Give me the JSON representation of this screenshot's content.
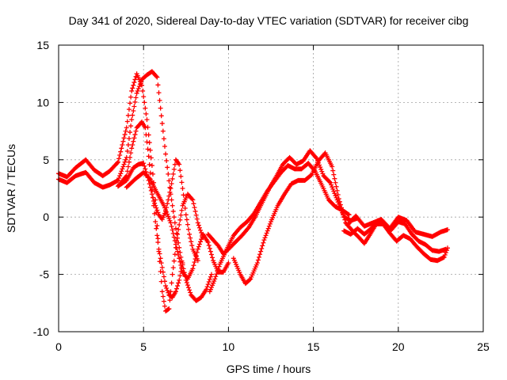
{
  "chart_data": {
    "type": "scatter",
    "title": "Day 341 of 2020, Sidereal Day-to-day VTEC variation (SDTVAR) for receiver cibg",
    "xlabel": "GPS time / hours",
    "ylabel": "SDTVAR / TECUs",
    "xlim": [
      0,
      25
    ],
    "ylim": [
      -10,
      15
    ],
    "xticks": [
      0,
      5,
      10,
      15,
      20,
      25
    ],
    "yticks": [
      -10,
      -5,
      0,
      5,
      10,
      15
    ],
    "grid": true,
    "marker": "+",
    "series_color": "#ff0000",
    "series": [
      {
        "name": "track-1",
        "points": [
          [
            0,
            3.8
          ],
          [
            0.5,
            3.5
          ],
          [
            1,
            4.3
          ],
          [
            1.6,
            5.0
          ],
          [
            2.1,
            4.1
          ],
          [
            2.6,
            3.6
          ],
          [
            3,
            4.0
          ],
          [
            3.5,
            4.8
          ],
          [
            4,
            7.8
          ],
          [
            4.3,
            11.0
          ],
          [
            4.6,
            12.5
          ],
          [
            4.9,
            11.5
          ],
          [
            5.2,
            8.5
          ],
          [
            5.5,
            4.5
          ],
          [
            5.7,
            1.5
          ],
          [
            5.9,
            -3.0
          ],
          [
            6.1,
            -6.5
          ],
          [
            6.3,
            -8.2
          ],
          [
            6.5,
            -8.0
          ],
          [
            6.7,
            -5.0
          ],
          [
            7.0,
            -1.5
          ],
          [
            7.3,
            1.0
          ],
          [
            7.6,
            2.0
          ],
          [
            7.9,
            1.5
          ],
          [
            8.2,
            -0.5
          ],
          [
            8.5,
            -1.8
          ]
        ]
      },
      {
        "name": "track-2",
        "points": [
          [
            0,
            3.3
          ],
          [
            0.5,
            3.0
          ],
          [
            1,
            3.6
          ],
          [
            1.6,
            3.9
          ],
          [
            2.1,
            3.0
          ],
          [
            2.6,
            2.6
          ],
          [
            3,
            2.8
          ],
          [
            3.5,
            3.2
          ],
          [
            4,
            5.2
          ],
          [
            4.3,
            8.5
          ],
          [
            4.6,
            10.8
          ],
          [
            4.9,
            12.0
          ],
          [
            5.2,
            12.4
          ],
          [
            5.5,
            12.7
          ],
          [
            5.8,
            12.2
          ],
          [
            6.0,
            9.5
          ],
          [
            6.3,
            5.5
          ],
          [
            6.6,
            2.0
          ],
          [
            6.9,
            -1.0
          ],
          [
            7.2,
            -3.5
          ],
          [
            7.5,
            -5.5
          ],
          [
            7.8,
            -6.8
          ],
          [
            8.1,
            -7.3
          ],
          [
            8.4,
            -7.0
          ],
          [
            8.7,
            -6.3
          ],
          [
            9.0,
            -5.0
          ]
        ]
      },
      {
        "name": "track-3",
        "points": [
          [
            3.5,
            2.7
          ],
          [
            4,
            3.6
          ],
          [
            4.3,
            6.0
          ],
          [
            4.6,
            7.8
          ],
          [
            4.9,
            8.3
          ],
          [
            5.1,
            7.8
          ],
          [
            5.3,
            5.3
          ],
          [
            5.5,
            2.4
          ],
          [
            5.7,
            -0.4
          ],
          [
            5.9,
            -2.8
          ],
          [
            6.1,
            -4.4
          ],
          [
            6.3,
            -6.0
          ],
          [
            6.5,
            -6.8
          ],
          [
            6.7,
            -7.0
          ],
          [
            6.9,
            -6.5
          ],
          [
            7.1,
            -5.5
          ],
          [
            7.3,
            -4.0
          ]
        ]
      },
      {
        "name": "track-4",
        "points": [
          [
            3.5,
            2.7
          ],
          [
            4,
            3.2
          ],
          [
            4.4,
            4.3
          ],
          [
            4.7,
            4.6
          ],
          [
            5.0,
            4.7
          ],
          [
            5.3,
            3.2
          ],
          [
            5.6,
            1.4
          ],
          [
            5.9,
            0.2
          ],
          [
            6.1,
            -0.2
          ],
          [
            6.3,
            0.5
          ],
          [
            6.6,
            2.5
          ],
          [
            6.9,
            5.0
          ],
          [
            7.1,
            4.6
          ],
          [
            7.3,
            2.5
          ],
          [
            7.5,
            0.2
          ],
          [
            7.7,
            -1.5
          ],
          [
            7.9,
            -2.8
          ],
          [
            8.2,
            -3.8
          ]
        ]
      },
      {
        "name": "track-5",
        "points": [
          [
            4,
            2.6
          ],
          [
            4.5,
            3.3
          ],
          [
            5,
            3.9
          ],
          [
            5.4,
            3.3
          ],
          [
            5.8,
            2.1
          ],
          [
            6.2,
            1.0
          ],
          [
            6.6,
            -0.5
          ],
          [
            7.0,
            -3.0
          ],
          [
            7.3,
            -4.8
          ],
          [
            7.6,
            -5.4
          ],
          [
            7.9,
            -4.5
          ],
          [
            8.2,
            -2.8
          ],
          [
            8.5,
            -1.5
          ],
          [
            8.8,
            -2.2
          ],
          [
            9.1,
            -3.8
          ],
          [
            9.4,
            -4.8
          ],
          [
            9.7,
            -4.8
          ],
          [
            10.0,
            -4.0
          ]
        ]
      },
      {
        "name": "track-6",
        "points": [
          [
            8.8,
            -1.5
          ],
          [
            9.1,
            -2.0
          ],
          [
            9.4,
            -2.5
          ],
          [
            9.7,
            -3.2
          ],
          [
            10.0,
            -2.8
          ],
          [
            10.4,
            -2.2
          ],
          [
            10.8,
            -1.6
          ],
          [
            11.2,
            -0.9
          ],
          [
            11.6,
            0.1
          ],
          [
            12.0,
            1.3
          ],
          [
            12.4,
            2.5
          ],
          [
            12.8,
            3.5
          ],
          [
            13.2,
            4.6
          ],
          [
            13.6,
            5.2
          ],
          [
            14.0,
            4.6
          ],
          [
            14.4,
            4.9
          ],
          [
            14.8,
            5.8
          ],
          [
            15.2,
            5.1
          ],
          [
            15.6,
            3.6
          ],
          [
            16.0,
            3.0
          ],
          [
            16.4,
            1.5
          ],
          [
            16.8,
            0.0
          ],
          [
            17.2,
            -0.3
          ],
          [
            17.6,
            -0.1
          ]
        ]
      },
      {
        "name": "track-7",
        "points": [
          [
            8.9,
            -6.5
          ],
          [
            9.2,
            -5.4
          ],
          [
            9.5,
            -4.1
          ],
          [
            9.9,
            -2.8
          ],
          [
            10.3,
            -1.6
          ],
          [
            10.7,
            -0.9
          ],
          [
            11.1,
            -0.4
          ],
          [
            11.5,
            0.3
          ],
          [
            11.9,
            1.3
          ],
          [
            12.3,
            2.3
          ],
          [
            12.7,
            3.1
          ],
          [
            13.1,
            3.9
          ],
          [
            13.5,
            4.5
          ],
          [
            13.9,
            4.2
          ],
          [
            14.3,
            4.2
          ],
          [
            14.7,
            4.7
          ],
          [
            15.1,
            4.0
          ],
          [
            15.5,
            2.8
          ],
          [
            15.9,
            1.5
          ],
          [
            16.3,
            0.9
          ],
          [
            16.7,
            0.6
          ],
          [
            17.1,
            0.2
          ]
        ]
      },
      {
        "name": "track-8",
        "points": [
          [
            10.3,
            -3.6
          ],
          [
            10.7,
            -5.0
          ],
          [
            11.0,
            -5.8
          ],
          [
            11.3,
            -5.4
          ],
          [
            11.7,
            -4.0
          ],
          [
            12.1,
            -2.0
          ],
          [
            12.5,
            -0.4
          ],
          [
            12.9,
            1.0
          ],
          [
            13.3,
            2.0
          ],
          [
            13.7,
            2.9
          ],
          [
            14.1,
            3.2
          ],
          [
            14.5,
            3.2
          ],
          [
            14.9,
            3.7
          ],
          [
            15.3,
            4.9
          ],
          [
            15.7,
            5.6
          ],
          [
            16.1,
            4.4
          ],
          [
            16.5,
            1.6
          ],
          [
            16.9,
            -0.5
          ],
          [
            17.3,
            -1.2
          ],
          [
            17.7,
            -1.8
          ],
          [
            18.0,
            -2.3
          ],
          [
            18.3,
            -1.6
          ],
          [
            18.7,
            -0.6
          ],
          [
            19.1,
            -0.6
          ],
          [
            19.5,
            -1.4
          ],
          [
            19.9,
            -2.1
          ],
          [
            20.3,
            -1.6
          ],
          [
            20.7,
            -1.9
          ],
          [
            21.1,
            -2.6
          ],
          [
            21.5,
            -3.2
          ],
          [
            21.9,
            -3.7
          ],
          [
            22.3,
            -3.8
          ],
          [
            22.7,
            -3.5
          ],
          [
            22.9,
            -2.7
          ]
        ]
      },
      {
        "name": "track-9",
        "points": [
          [
            16.8,
            -1.2
          ],
          [
            17.2,
            -1.5
          ],
          [
            17.6,
            -1.0
          ],
          [
            18.0,
            -1.5
          ],
          [
            18.4,
            -1.0
          ],
          [
            18.8,
            -0.3
          ],
          [
            19.2,
            -0.7
          ],
          [
            19.6,
            -1.1
          ],
          [
            20.0,
            -0.4
          ],
          [
            20.4,
            -0.6
          ],
          [
            20.8,
            -1.5
          ],
          [
            21.2,
            -2.1
          ],
          [
            21.6,
            -2.4
          ],
          [
            22.0,
            -2.9
          ],
          [
            22.4,
            -3.0
          ],
          [
            22.8,
            -2.8
          ]
        ]
      },
      {
        "name": "track-10",
        "points": [
          [
            17.0,
            -0.7
          ],
          [
            17.5,
            0.1
          ],
          [
            18.0,
            -0.8
          ],
          [
            18.5,
            -0.5
          ],
          [
            19.0,
            -0.2
          ],
          [
            19.5,
            -1.0
          ],
          [
            20.0,
            0.0
          ],
          [
            20.5,
            -0.3
          ],
          [
            21.0,
            -1.3
          ],
          [
            21.5,
            -1.5
          ],
          [
            22.0,
            -1.7
          ],
          [
            22.5,
            -1.3
          ],
          [
            22.9,
            -1.1
          ]
        ]
      }
    ]
  }
}
